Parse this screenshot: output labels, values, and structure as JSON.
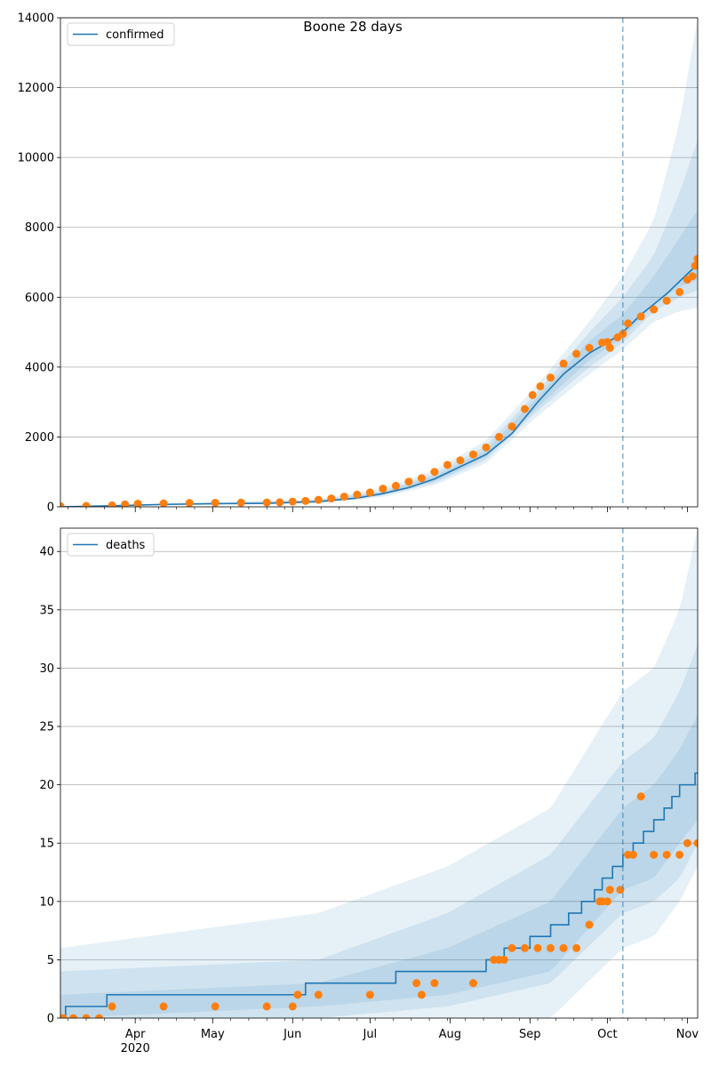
{
  "title": "Boone 28 days",
  "colors": {
    "model": "#1f77b4",
    "observed": "#ff7f0e",
    "band": "#1f77b4",
    "grid": "#b0b0b0",
    "vline": "#1f77b4"
  },
  "x_axis": {
    "domain_days": [
      0,
      247
    ],
    "ticks": [
      {
        "day": 29,
        "label": "Apr",
        "sublabel": "2020"
      },
      {
        "day": 59,
        "label": "May"
      },
      {
        "day": 90,
        "label": "Jun"
      },
      {
        "day": 120,
        "label": "Jul"
      },
      {
        "day": 151,
        "label": "Aug"
      },
      {
        "day": 182,
        "label": "Sep"
      },
      {
        "day": 212,
        "label": "Oct"
      },
      {
        "day": 243,
        "label": "Nov"
      }
    ]
  },
  "chart_data": [
    {
      "type": "line",
      "legend": "confirmed",
      "legend_position": "top-left",
      "grid": "horizontal",
      "ylim": [
        0,
        14000
      ],
      "yticks": [
        0,
        2000,
        4000,
        6000,
        8000,
        10000,
        12000,
        14000
      ],
      "forecast_start_day": 218,
      "model_series": {
        "name": "confirmed",
        "x": [
          0,
          20,
          40,
          60,
          80,
          100,
          115,
          125,
          135,
          145,
          155,
          165,
          175,
          185,
          195,
          205,
          212,
          218,
          225,
          235,
          247
        ],
        "y": [
          0,
          30,
          70,
          90,
          100,
          150,
          250,
          380,
          550,
          800,
          1150,
          1500,
          2100,
          3000,
          3800,
          4400,
          4700,
          5000,
          5500,
          6100,
          6950
        ]
      },
      "bands": [
        {
          "x": [
            0,
            100,
            125,
            145,
            165,
            185,
            205,
            218,
            230,
            240,
            247
          ],
          "lower": [
            0,
            100,
            280,
            620,
            1250,
            2600,
            3800,
            4500,
            5300,
            5600,
            5700
          ],
          "upper": [
            0,
            220,
            520,
            1050,
            1900,
            3500,
            5300,
            6600,
            8200,
            11000,
            14000
          ]
        },
        {
          "x": [
            0,
            100,
            125,
            145,
            165,
            185,
            205,
            218,
            230,
            240,
            247
          ],
          "lower": [
            0,
            120,
            320,
            680,
            1350,
            2750,
            4000,
            4700,
            5600,
            6000,
            6200
          ],
          "upper": [
            0,
            190,
            460,
            950,
            1750,
            3300,
            5000,
            6000,
            7200,
            9000,
            10500
          ]
        },
        {
          "x": [
            0,
            100,
            125,
            145,
            165,
            185,
            205,
            218,
            230,
            240,
            247
          ],
          "lower": [
            0,
            135,
            350,
            730,
            1420,
            2850,
            4200,
            4850,
            5800,
            6300,
            6500
          ],
          "upper": [
            0,
            170,
            420,
            880,
            1620,
            3150,
            4750,
            5500,
            6600,
            7700,
            8500
          ]
        }
      ],
      "observed": {
        "x": [
          0,
          10,
          20,
          25,
          30,
          40,
          50,
          60,
          70,
          80,
          85,
          90,
          95,
          100,
          105,
          110,
          115,
          120,
          125,
          130,
          135,
          140,
          145,
          150,
          155,
          160,
          165,
          170,
          175,
          180,
          183,
          186,
          190,
          195,
          200,
          205,
          210,
          212,
          213,
          216,
          218,
          220,
          225,
          230,
          235,
          240,
          243,
          245,
          246,
          247
        ],
        "y": [
          20,
          25,
          40,
          70,
          90,
          100,
          110,
          115,
          120,
          125,
          130,
          150,
          170,
          200,
          240,
          290,
          350,
          410,
          520,
          600,
          720,
          820,
          1000,
          1200,
          1330,
          1500,
          1700,
          2000,
          2300,
          2800,
          3200,
          3450,
          3700,
          4100,
          4380,
          4550,
          4700,
          4720,
          4550,
          4850,
          4950,
          5250,
          5450,
          5650,
          5900,
          6150,
          6500,
          6600,
          6900,
          7100
        ]
      }
    },
    {
      "type": "line",
      "legend": "deaths",
      "legend_position": "top-left",
      "grid": "horizontal",
      "ylim": [
        0,
        42
      ],
      "yticks": [
        0,
        5,
        10,
        15,
        20,
        25,
        30,
        35,
        40
      ],
      "forecast_start_day": 218,
      "model_series": {
        "name": "deaths",
        "x": [
          0,
          2,
          18,
          95,
          130,
          165,
          172,
          182,
          190,
          197,
          202,
          207,
          210,
          214,
          218,
          222,
          226,
          230,
          234,
          237,
          240,
          243,
          246,
          247
        ],
        "y": [
          0,
          1,
          2,
          3,
          4,
          5,
          6,
          7,
          8,
          9,
          10,
          11,
          12,
          13,
          14,
          15,
          16,
          17,
          18,
          19,
          20,
          20,
          21,
          21
        ]
      },
      "bands": [
        {
          "x": [
            0,
            100,
            150,
            190,
            218,
            230,
            240,
            247
          ],
          "lower": [
            0,
            0,
            0,
            0,
            6,
            7,
            10,
            13
          ],
          "upper": [
            6,
            9,
            13,
            18,
            28,
            30,
            35,
            42
          ]
        },
        {
          "x": [
            0,
            100,
            150,
            190,
            218,
            230,
            240,
            247
          ],
          "lower": [
            0,
            0,
            1,
            3,
            9,
            10,
            12,
            15
          ],
          "upper": [
            4,
            5,
            9,
            14,
            22,
            24,
            28,
            32
          ]
        },
        {
          "x": [
            0,
            100,
            150,
            190,
            218,
            230,
            240,
            247
          ],
          "lower": [
            0,
            1,
            2,
            4,
            11,
            12,
            15,
            17
          ],
          "upper": [
            2,
            3,
            6,
            10,
            18,
            20,
            23,
            26
          ]
        }
      ],
      "observed": {
        "x": [
          1,
          5,
          10,
          15,
          20,
          40,
          60,
          80,
          90,
          92,
          100,
          120,
          140,
          138,
          145,
          160,
          168,
          170,
          172,
          175,
          180,
          185,
          190,
          195,
          200,
          205,
          209,
          210,
          212,
          213,
          217,
          220,
          222,
          225,
          230,
          235,
          240,
          243,
          247
        ],
        "y": [
          0,
          0,
          0,
          0,
          1,
          1,
          1,
          1,
          1,
          2,
          2,
          2,
          2,
          3,
          3,
          3,
          5,
          5,
          5,
          6,
          6,
          6,
          6,
          6,
          6,
          8,
          10,
          10,
          10,
          11,
          11,
          14,
          14,
          19,
          14,
          14,
          14,
          15,
          15
        ]
      }
    }
  ]
}
